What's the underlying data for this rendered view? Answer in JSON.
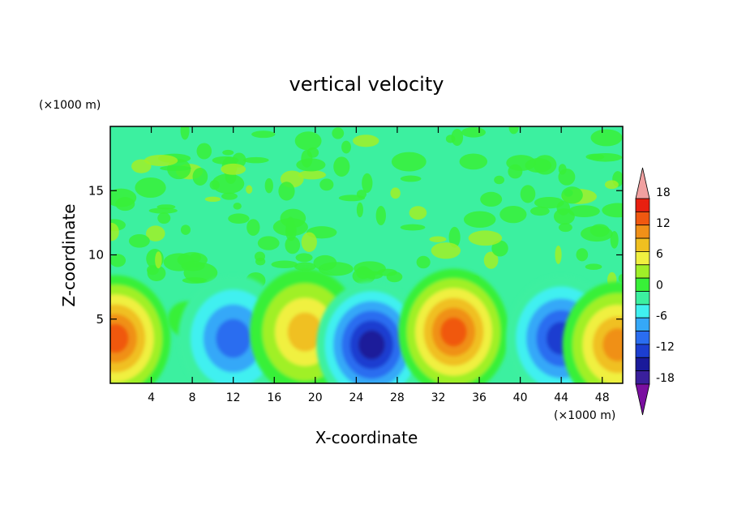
{
  "chart_data": {
    "type": "heatmap",
    "title": "vertical velocity",
    "xlabel": "X-coordinate",
    "ylabel": "Z-coordinate",
    "x_unit": "(×1000 m)",
    "y_unit": "(×1000 m)",
    "xlim": [
      0,
      50
    ],
    "ylim": [
      0,
      20
    ],
    "x_ticks": [
      4,
      8,
      12,
      16,
      20,
      24,
      28,
      32,
      36,
      40,
      44,
      48
    ],
    "y_ticks": [
      5,
      10,
      15
    ],
    "colorbar": {
      "levels": [
        -21,
        -18,
        -15,
        -12,
        -9,
        -6,
        -3,
        0,
        3,
        6,
        9,
        12,
        15,
        18,
        21
      ],
      "tick_labels": [
        "18",
        "12",
        "6",
        "0",
        "-6",
        "-12",
        "-18"
      ],
      "tick_values": [
        18,
        12,
        6,
        0,
        -6,
        -12,
        -18
      ],
      "colors": [
        "#7a0fa0",
        "#3a1f9c",
        "#1a1a9a",
        "#1c3ed0",
        "#2a6df0",
        "#35a8f8",
        "#40f0f0",
        "#3cf0a0",
        "#38f038",
        "#a0f028",
        "#f0f040",
        "#f0c020",
        "#f09018",
        "#f05810",
        "#e82010",
        "#f0a0a0"
      ],
      "extend": "both"
    },
    "features": [
      {
        "x": 0.5,
        "z": 3.5,
        "w": 4.2,
        "peak": 15
      },
      {
        "x": 7.5,
        "z": 5.0,
        "w": 0.5,
        "peak": 0
      },
      {
        "x": 12,
        "z": 3.5,
        "w": -10,
        "peak": -10
      },
      {
        "x": 19,
        "z": 4.0,
        "w": 8,
        "peak": 9
      },
      {
        "x": 25.5,
        "z": 3.0,
        "w": -14,
        "peak": -15
      },
      {
        "x": 33.5,
        "z": 4.0,
        "w": 14,
        "peak": 14
      },
      {
        "x": 44,
        "z": 3.5,
        "w": -10,
        "peak": -11
      },
      {
        "x": 49.5,
        "z": 3.0,
        "w": 12,
        "peak": 12
      }
    ]
  }
}
